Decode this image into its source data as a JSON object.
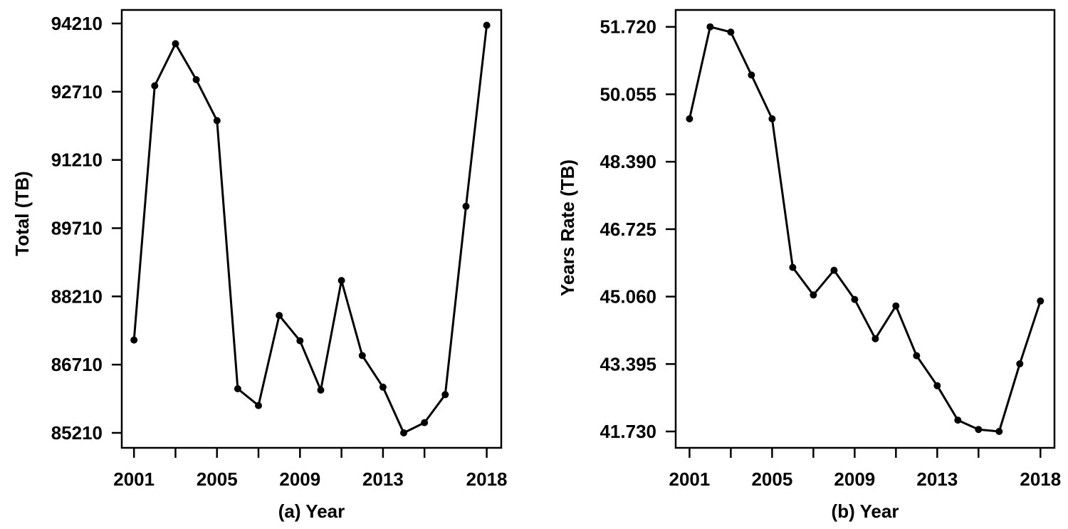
{
  "figure": {
    "background": "#ffffff",
    "ink_color": "#000000",
    "description": "Two side-by-side black line charts with filled circle markers"
  },
  "chart_data": [
    {
      "type": "line",
      "panel": "a",
      "title": "",
      "xlabel": "(a) Year",
      "ylabel": "Total (TB)",
      "marker": "filled-circle",
      "grid": false,
      "legend": "none",
      "x": [
        2001,
        2002,
        2003,
        2004,
        2005,
        2006,
        2007,
        2008,
        2009,
        2010,
        2011,
        2012,
        2013,
        2014,
        2015,
        2016,
        2017,
        2018
      ],
      "values": [
        87250,
        92840,
        93765,
        92975,
        92075,
        86180,
        85810,
        87790,
        87235,
        86150,
        88560,
        86910,
        86215,
        85210,
        85435,
        86050,
        90190,
        94170
      ],
      "xlim": [
        2000.41,
        2018.7
      ],
      "ylim": [
        84881,
        94507
      ],
      "x_ticks": [
        {
          "v": 2001,
          "label": "2001"
        },
        {
          "v": 2003,
          "label": ""
        },
        {
          "v": 2005,
          "label": "2005"
        },
        {
          "v": 2007,
          "label": ""
        },
        {
          "v": 2009,
          "label": "2009"
        },
        {
          "v": 2011,
          "label": ""
        },
        {
          "v": 2013,
          "label": "2013"
        },
        {
          "v": 2015,
          "label": ""
        },
        {
          "v": 2018,
          "label": "2018"
        }
      ],
      "y_ticks": [
        {
          "v": 85210,
          "label": "85210"
        },
        {
          "v": 86710,
          "label": "86710"
        },
        {
          "v": 88210,
          "label": "88210"
        },
        {
          "v": 89710,
          "label": "89710"
        },
        {
          "v": 91210,
          "label": "91210"
        },
        {
          "v": 92710,
          "label": "92710"
        },
        {
          "v": 94210,
          "label": "94210"
        }
      ]
    },
    {
      "type": "line",
      "panel": "b",
      "title": "",
      "xlabel": "(b) Year",
      "ylabel": "Years Rate (TB)",
      "marker": "filled-circle",
      "grid": false,
      "legend": "none",
      "x": [
        2001,
        2002,
        2003,
        2004,
        2005,
        2006,
        2007,
        2008,
        2009,
        2010,
        2011,
        2012,
        2013,
        2014,
        2015,
        2016,
        2017,
        2018
      ],
      "values": [
        49.45,
        51.72,
        51.59,
        50.53,
        49.45,
        45.78,
        45.1,
        45.71,
        44.99,
        44.02,
        44.83,
        43.6,
        42.86,
        42.01,
        41.78,
        41.73,
        43.4,
        44.95
      ],
      "xlim": [
        2000.33,
        2018.68
      ],
      "ylim": [
        41.326,
        52.137
      ],
      "x_ticks": [
        {
          "v": 2001,
          "label": "2001"
        },
        {
          "v": 2003,
          "label": ""
        },
        {
          "v": 2005,
          "label": "2005"
        },
        {
          "v": 2007,
          "label": ""
        },
        {
          "v": 2009,
          "label": "2009"
        },
        {
          "v": 2011,
          "label": ""
        },
        {
          "v": 2013,
          "label": "2013"
        },
        {
          "v": 2015,
          "label": ""
        },
        {
          "v": 2018,
          "label": "2018"
        }
      ],
      "y_ticks": [
        {
          "v": 41.73,
          "label": "41.730"
        },
        {
          "v": 43.395,
          "label": "43.395"
        },
        {
          "v": 45.06,
          "label": "45.060"
        },
        {
          "v": 46.725,
          "label": "46.725"
        },
        {
          "v": 48.39,
          "label": "48.390"
        },
        {
          "v": 50.055,
          "label": "50.055"
        },
        {
          "v": 51.72,
          "label": "51.720"
        }
      ]
    }
  ]
}
